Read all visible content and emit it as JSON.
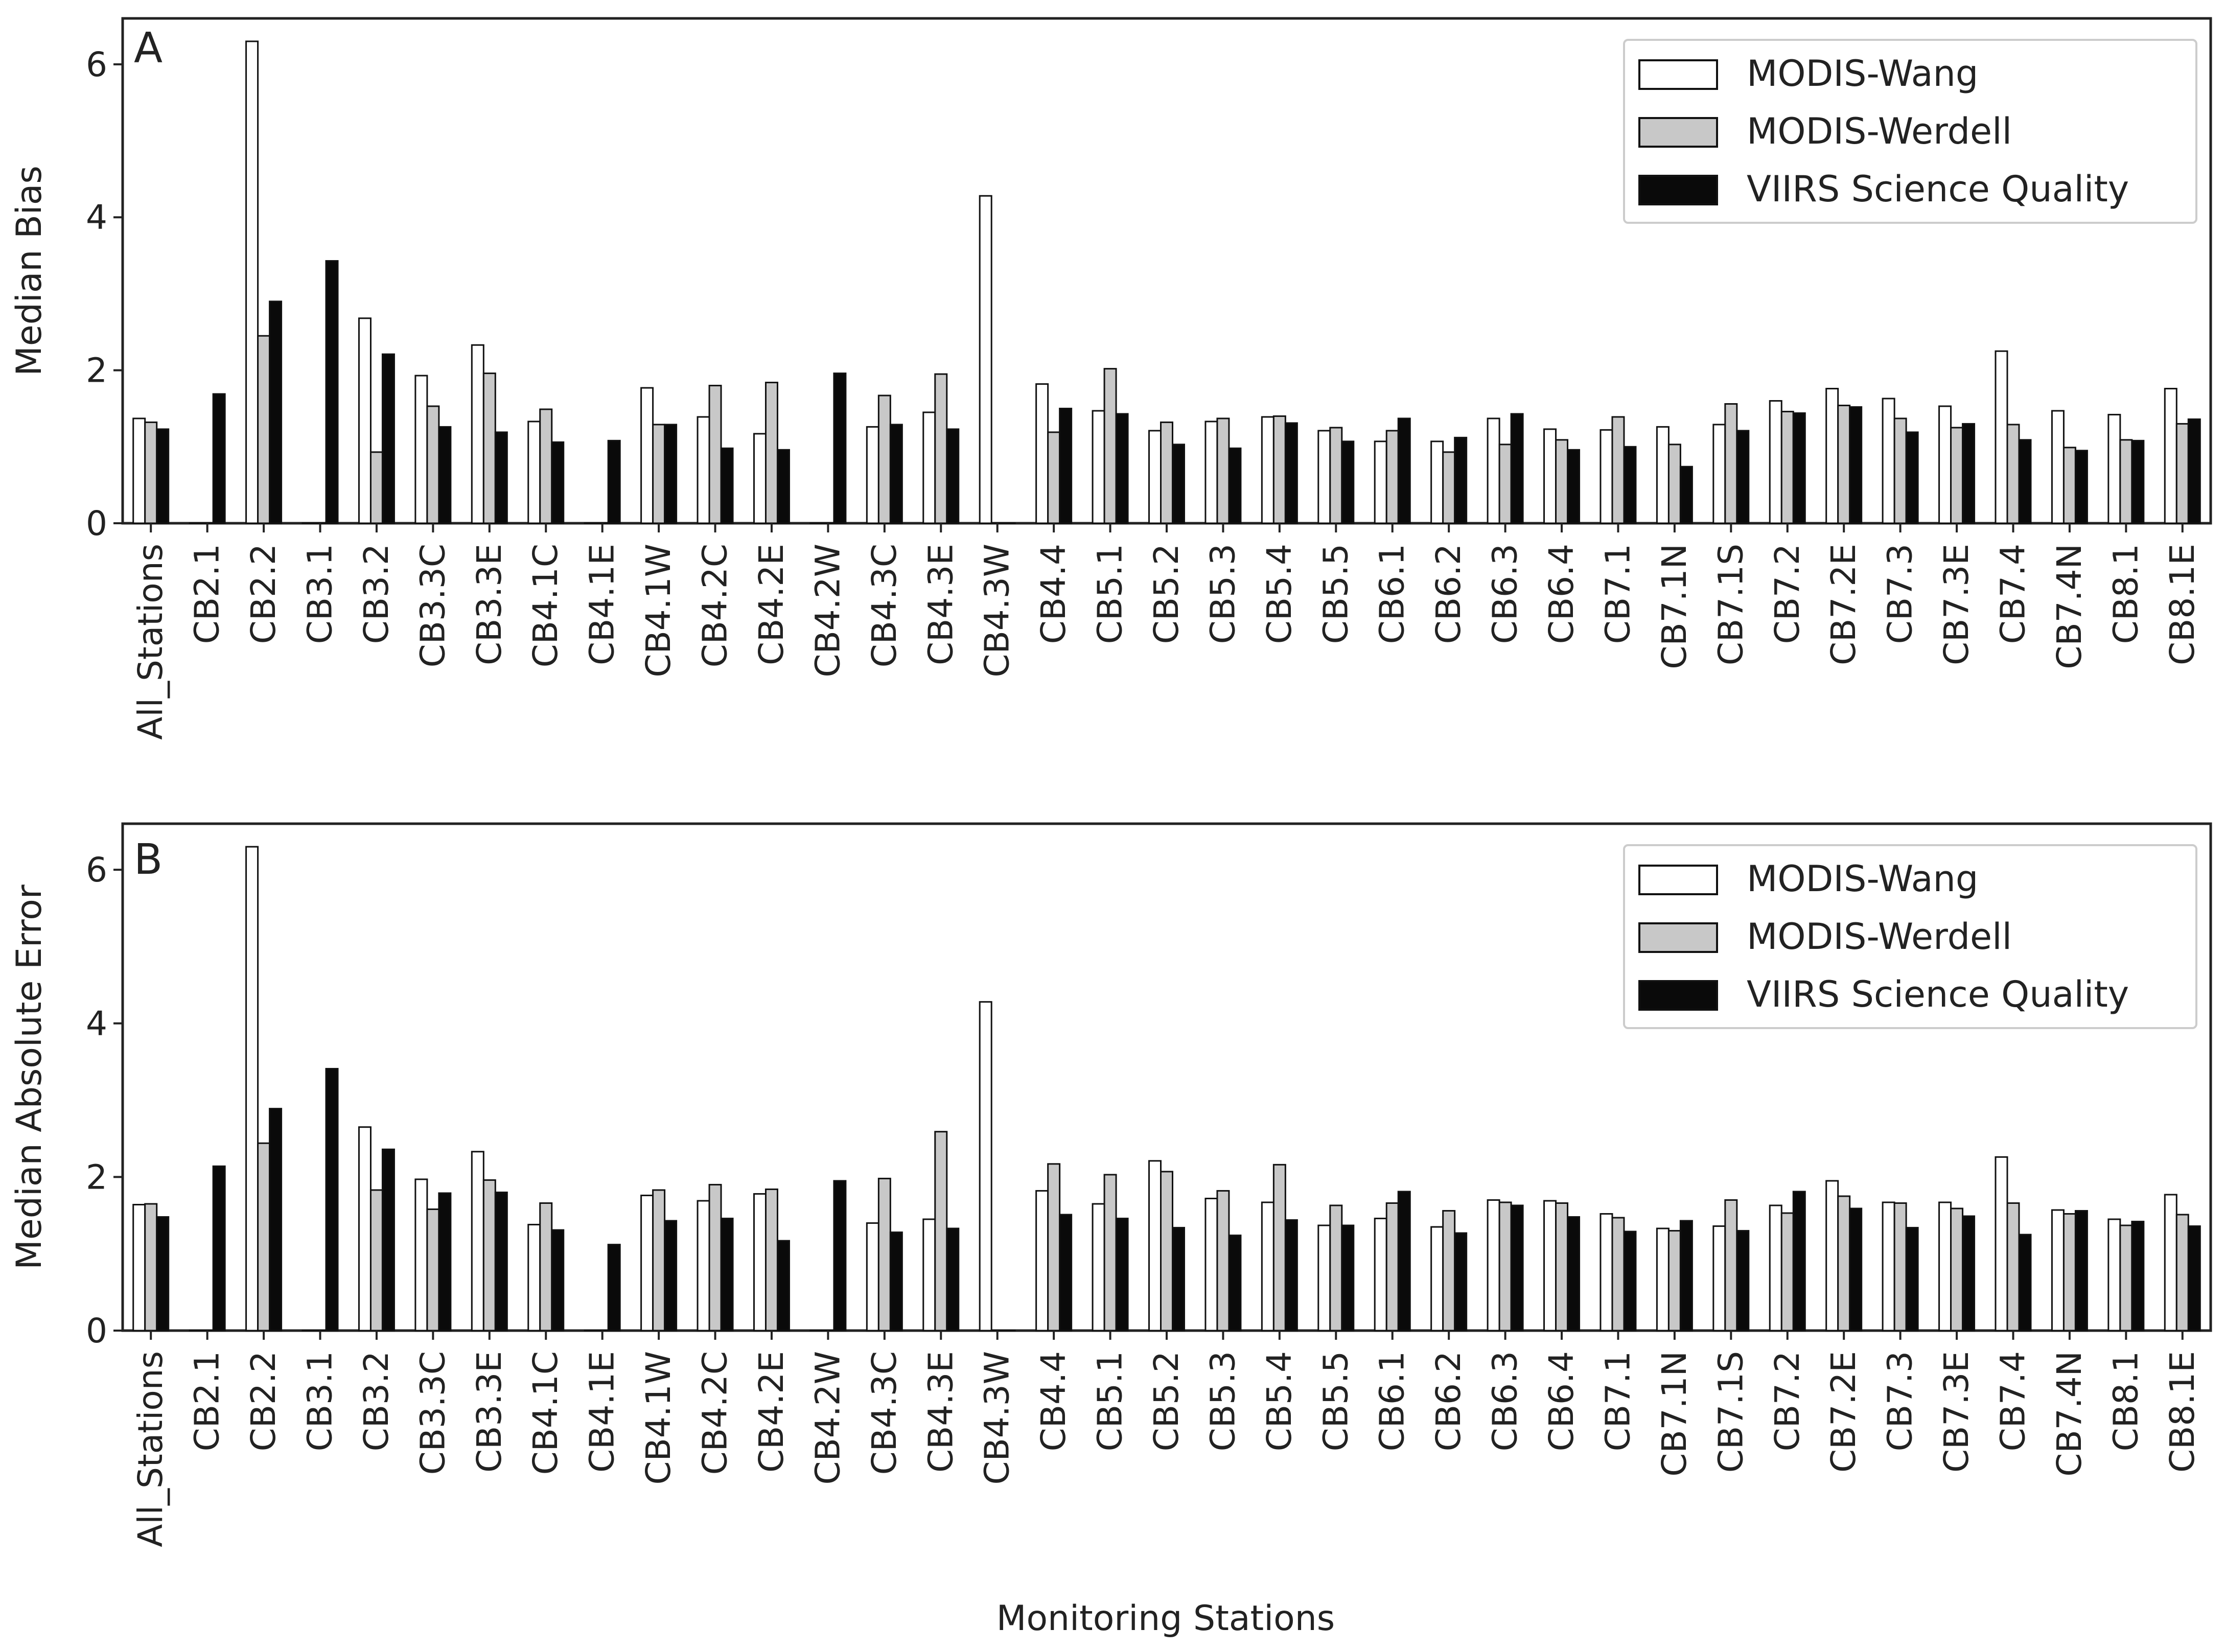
{
  "figure": {
    "xlabel": "Monitoring Stations"
  },
  "chart_data": [
    {
      "type": "bar",
      "panel": "A",
      "ylabel": "Median Bias",
      "ylim": [
        0,
        6.6
      ],
      "yticks": [
        0,
        2,
        4,
        6
      ],
      "grid": false,
      "legend_position": "top-right",
      "categories": [
        "All_Stations",
        "CB2.1",
        "CB2.2",
        "CB3.1",
        "CB3.2",
        "CB3.3C",
        "CB3.3E",
        "CB4.1C",
        "CB4.1E",
        "CB4.1W",
        "CB4.2C",
        "CB4.2E",
        "CB4.2W",
        "CB4.3C",
        "CB4.3E",
        "CB4.3W",
        "CB4.4",
        "CB5.1",
        "CB5.2",
        "CB5.3",
        "CB5.4",
        "CB5.5",
        "CB6.1",
        "CB6.2",
        "CB6.3",
        "CB6.4",
        "CB7.1",
        "CB7.1N",
        "CB7.1S",
        "CB7.2",
        "CB7.2E",
        "CB7.3",
        "CB7.3E",
        "CB7.4",
        "CB7.4N",
        "CB8.1",
        "CB8.1E"
      ],
      "series": [
        {
          "name": "MODIS-Wang",
          "color": "#ffffff",
          "values": [
            1.37,
            0.0,
            6.3,
            0.0,
            2.68,
            1.93,
            2.33,
            1.33,
            0.0,
            1.77,
            1.39,
            1.17,
            0.0,
            1.26,
            1.45,
            4.28,
            1.82,
            1.47,
            1.21,
            1.33,
            1.39,
            1.21,
            1.07,
            1.07,
            1.37,
            1.23,
            1.22,
            1.26,
            1.29,
            1.6,
            1.76,
            1.63,
            1.53,
            2.25,
            1.47,
            1.42,
            1.76
          ]
        },
        {
          "name": "MODIS-Werdell",
          "color": "#c8c8c8",
          "values": [
            1.32,
            0.0,
            2.45,
            0.0,
            0.93,
            1.53,
            1.96,
            1.49,
            0.0,
            1.29,
            1.8,
            1.84,
            0.0,
            1.67,
            1.95,
            0.0,
            1.19,
            2.02,
            1.32,
            1.37,
            1.4,
            1.25,
            1.21,
            0.93,
            1.03,
            1.09,
            1.39,
            1.03,
            1.56,
            1.46,
            1.54,
            1.37,
            1.25,
            1.29,
            0.99,
            1.09,
            1.3
          ]
        },
        {
          "name": "VIIRS Science Quality",
          "color": "#0a0a0a",
          "values": [
            1.23,
            1.69,
            2.9,
            3.43,
            2.21,
            1.26,
            1.19,
            1.06,
            1.08,
            1.29,
            0.98,
            0.96,
            1.96,
            1.29,
            1.23,
            0.0,
            1.5,
            1.43,
            1.03,
            0.98,
            1.31,
            1.07,
            1.37,
            1.12,
            1.43,
            0.96,
            1.0,
            0.74,
            1.21,
            1.44,
            1.52,
            1.19,
            1.3,
            1.09,
            0.95,
            1.08,
            1.36
          ]
        }
      ]
    },
    {
      "type": "bar",
      "panel": "B",
      "ylabel": "Median Absolute Error",
      "ylim": [
        0,
        6.6
      ],
      "yticks": [
        0,
        2,
        4,
        6
      ],
      "grid": false,
      "legend_position": "top-right",
      "categories": [
        "All_Stations",
        "CB2.1",
        "CB2.2",
        "CB3.1",
        "CB3.2",
        "CB3.3C",
        "CB3.3E",
        "CB4.1C",
        "CB4.1E",
        "CB4.1W",
        "CB4.2C",
        "CB4.2E",
        "CB4.2W",
        "CB4.3C",
        "CB4.3E",
        "CB4.3W",
        "CB4.4",
        "CB5.1",
        "CB5.2",
        "CB5.3",
        "CB5.4",
        "CB5.5",
        "CB6.1",
        "CB6.2",
        "CB6.3",
        "CB6.4",
        "CB7.1",
        "CB7.1N",
        "CB7.1S",
        "CB7.2",
        "CB7.2E",
        "CB7.3",
        "CB7.3E",
        "CB7.4",
        "CB7.4N",
        "CB8.1",
        "CB8.1E"
      ],
      "series": [
        {
          "name": "MODIS-Wang",
          "color": "#ffffff",
          "values": [
            1.64,
            0.0,
            6.3,
            0.0,
            2.65,
            1.97,
            2.33,
            1.38,
            0.0,
            1.76,
            1.69,
            1.78,
            0.0,
            1.4,
            1.45,
            4.28,
            1.82,
            1.65,
            2.21,
            1.72,
            1.67,
            1.37,
            1.46,
            1.35,
            1.7,
            1.69,
            1.52,
            1.33,
            1.36,
            1.63,
            1.95,
            1.67,
            1.67,
            2.26,
            1.57,
            1.45,
            1.77
          ]
        },
        {
          "name": "MODIS-Werdell",
          "color": "#c8c8c8",
          "values": [
            1.65,
            0.0,
            2.44,
            0.0,
            1.83,
            1.58,
            1.96,
            1.66,
            0.0,
            1.83,
            1.9,
            1.84,
            0.0,
            1.98,
            2.59,
            0.0,
            2.17,
            2.03,
            2.07,
            1.82,
            2.16,
            1.63,
            1.66,
            1.56,
            1.67,
            1.66,
            1.47,
            1.3,
            1.7,
            1.53,
            1.75,
            1.66,
            1.59,
            1.66,
            1.52,
            1.37,
            1.51
          ]
        },
        {
          "name": "VIIRS Science Quality",
          "color": "#0a0a0a",
          "values": [
            1.48,
            2.14,
            2.89,
            3.41,
            2.36,
            1.79,
            1.8,
            1.31,
            1.12,
            1.43,
            1.46,
            1.17,
            1.95,
            1.28,
            1.33,
            0.0,
            1.51,
            1.46,
            1.34,
            1.24,
            1.44,
            1.37,
            1.81,
            1.27,
            1.63,
            1.48,
            1.29,
            1.43,
            1.3,
            1.81,
            1.59,
            1.34,
            1.49,
            1.25,
            1.56,
            1.42,
            1.36
          ]
        }
      ]
    }
  ]
}
